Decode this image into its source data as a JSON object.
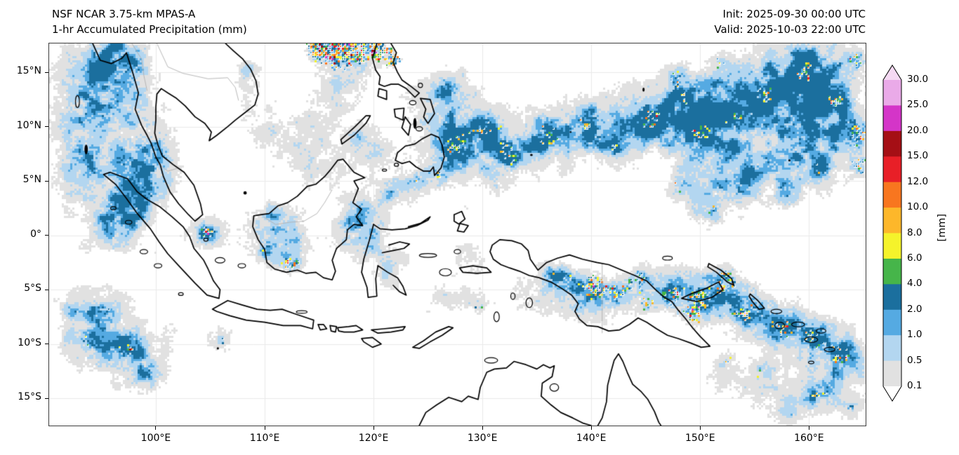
{
  "header": {
    "model_line": "NSF NCAR 3.75-km MPAS-A",
    "product_line": "1-hr Accumulated Precipitation (mm)",
    "init_line": "Init: 2025-09-30 00:00 UTC",
    "valid_line": "Valid: 2025-10-03 22:00 UTC"
  },
  "chart_data": {
    "type": "heatmap",
    "title": "NSF NCAR 3.75-km MPAS-A  1-hr Accumulated Precipitation (mm)",
    "init": "2025-09-30 00:00 UTC",
    "valid": "2025-10-03 22:00 UTC",
    "region": "Maritime Continent and western Pacific lat-lon map",
    "x_axis": {
      "tick_labels": [
        "100°E",
        "110°E",
        "120°E",
        "130°E",
        "140°E",
        "150°E",
        "160°E"
      ],
      "tick_lons": [
        100,
        110,
        120,
        130,
        140,
        150,
        160
      ],
      "lon_range": [
        90.2,
        165.2
      ]
    },
    "y_axis": {
      "tick_labels": [
        "15°N",
        "10°N",
        "5°N",
        "0°",
        "5°S",
        "10°S",
        "15°S"
      ],
      "tick_lats": [
        15,
        10,
        5,
        0,
        -5,
        -10,
        -15
      ],
      "lat_range": [
        -17.5,
        17.65
      ]
    },
    "colorbar": {
      "units_label": "[mm]",
      "tick_labels": [
        "30.0",
        "25.0",
        "20.0",
        "15.0",
        "12.0",
        "10.0",
        "8.0",
        "6.0",
        "4.0",
        "2.0",
        "1.0",
        "0.5",
        "0.1"
      ],
      "levels": [
        0.1,
        0.5,
        1.0,
        2.0,
        4.0,
        6.0,
        8.0,
        10.0,
        12.0,
        15.0,
        20.0,
        25.0,
        30.0
      ],
      "segment_colors_low_to_high": [
        "#e1e1e1",
        "#b3d6f0",
        "#55aae2",
        "#1b6f9e",
        "#46b54a",
        "#f5f32b",
        "#fdb72a",
        "#f8761f",
        "#e81f27",
        "#a50f15",
        "#d435c8",
        "#eaaae8"
      ],
      "under_color": "#ffffff",
      "over_color": "#f5d9f3"
    }
  }
}
